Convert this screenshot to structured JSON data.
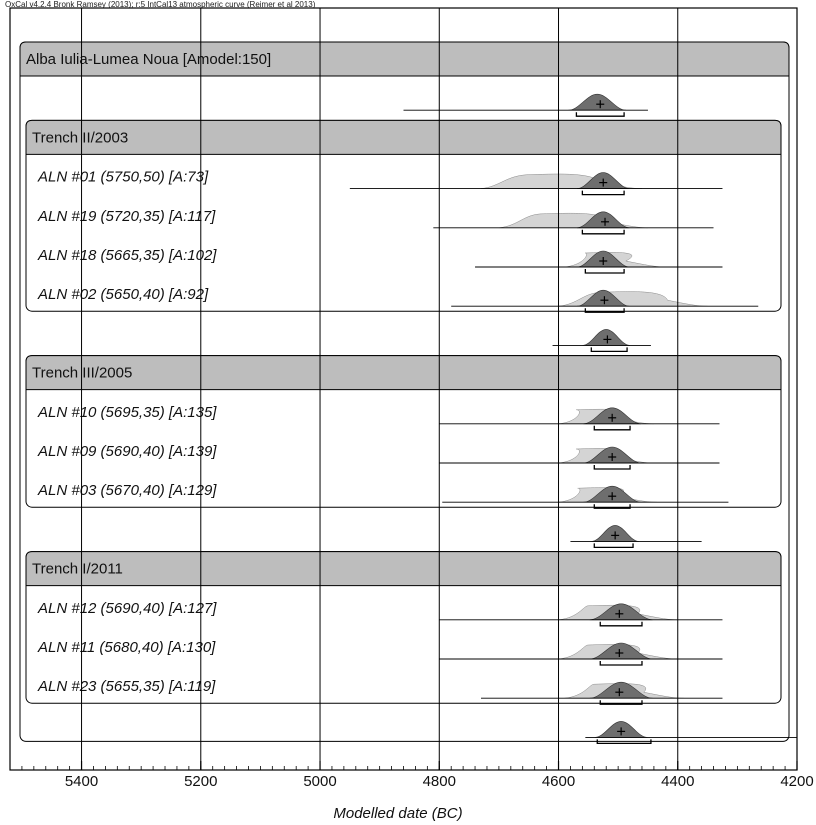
{
  "header_text": "OxCal v4.2.4 Bronk Ramsey (2013); r:5 IntCal13 atmospheric curve (Reimer et al 2013)",
  "chart_data": {
    "type": "oxcal-multiplot",
    "xlabel": "Modelled date (BC)",
    "x_axis": {
      "min": 4200,
      "max": 5520,
      "reversed": true,
      "major_ticks": [
        5400,
        5200,
        5000,
        4800,
        4600,
        4400,
        4200
      ],
      "tick_labels": [
        "5400",
        "5200",
        "5000",
        "4800",
        "4600",
        "4400",
        "4200"
      ],
      "minor_tick_step": 20
    },
    "grid": true,
    "groups": [
      {
        "label": "Alba Iulia-Lumea Noua [Amodel:150]",
        "level": 0,
        "row": 0,
        "end_row": 16
      },
      {
        "label": "Trench II/2003",
        "level": 1,
        "row": 2,
        "end_row": 6
      },
      {
        "label": "Trench III/2005",
        "level": 1,
        "row": 8,
        "end_row": 11
      },
      {
        "label": "Trench I/2011",
        "level": 1,
        "row": 13,
        "end_row": 16
      }
    ],
    "entries": [
      {
        "row": 1,
        "label": "",
        "kind": "boundary",
        "line": [
          4860,
          4450
        ],
        "peak": 4535,
        "spread": 22,
        "range": [
          4570,
          4490
        ],
        "mean": 4530
      },
      {
        "row": 3,
        "label": "ALN #01 (5750,50) [A:73]",
        "kind": "date",
        "line": [
          4950,
          4325
        ],
        "prior": [
          4730,
          4460
        ],
        "peak": 4525,
        "spread": 20,
        "range": [
          4560,
          4490
        ],
        "mean": 4525
      },
      {
        "row": 4,
        "label": "ALN #19 (5720,35) [A:117]",
        "kind": "date",
        "line": [
          4810,
          4340
        ],
        "prior": [
          4700,
          4450
        ],
        "peak": 4525,
        "spread": 20,
        "range": [
          4560,
          4490
        ],
        "mean": 4522
      },
      {
        "row": 5,
        "label": "ALN #18 (5665,35) [A:102]",
        "kind": "date",
        "line": [
          4740,
          4325
        ],
        "prior": [
          4590,
          4420
        ],
        "peak": 4525,
        "spread": 20,
        "range": [
          4555,
          4490
        ],
        "mean": 4525
      },
      {
        "row": 6,
        "label": "ALN #02 (5650,40) [A:92]",
        "kind": "date",
        "line": [
          4780,
          4265
        ],
        "prior": [
          4600,
          4350
        ],
        "peak": 4525,
        "spread": 20,
        "range": [
          4555,
          4490
        ],
        "mean": 4523
      },
      {
        "row": 7,
        "label": "",
        "kind": "boundary",
        "line": [
          4610,
          4445
        ],
        "peak": 4520,
        "spread": 18,
        "range": [
          4545,
          4485
        ],
        "mean": 4518
      },
      {
        "row": 9,
        "label": "ALN #10 (5695,35) [A:135]",
        "kind": "date",
        "line": [
          4800,
          4330
        ],
        "prior": [
          4600,
          4440
        ],
        "peak": 4510,
        "spread": 22,
        "range": [
          4540,
          4480
        ],
        "mean": 4510
      },
      {
        "row": 10,
        "label": "ALN #09 (5690,40) [A:139]",
        "kind": "date",
        "line": [
          4800,
          4330
        ],
        "prior": [
          4600,
          4440
        ],
        "peak": 4510,
        "spread": 22,
        "range": [
          4540,
          4480
        ],
        "mean": 4510
      },
      {
        "row": 11,
        "label": "ALN #03 (5670,40) [A:129]",
        "kind": "date",
        "line": [
          4795,
          4315
        ],
        "prior": [
          4600,
          4435
        ],
        "peak": 4510,
        "spread": 22,
        "range": [
          4540,
          4480
        ],
        "mean": 4510
      },
      {
        "row": 12,
        "label": "",
        "kind": "boundary",
        "line": [
          4580,
          4360
        ],
        "peak": 4505,
        "spread": 18,
        "range": [
          4540,
          4475
        ],
        "mean": 4505
      },
      {
        "row": 14,
        "label": "ALN #12 (5690,40) [A:127]",
        "kind": "date",
        "line": [
          4800,
          4325
        ],
        "prior": [
          4600,
          4400
        ],
        "peak": 4495,
        "spread": 24,
        "range": [
          4530,
          4460
        ],
        "mean": 4498
      },
      {
        "row": 15,
        "label": "ALN #11 (5680,40) [A:130]",
        "kind": "date",
        "line": [
          4800,
          4325
        ],
        "prior": [
          4600,
          4400
        ],
        "peak": 4495,
        "spread": 24,
        "range": [
          4530,
          4460
        ],
        "mean": 4498
      },
      {
        "row": 16,
        "label": "ALN #23 (5655,35) [A:119]",
        "kind": "date",
        "line": [
          4730,
          4325
        ],
        "prior": [
          4590,
          4390
        ],
        "peak": 4495,
        "spread": 24,
        "range": [
          4530,
          4460
        ],
        "mean": 4498
      },
      {
        "row": 17,
        "label": "",
        "kind": "boundary",
        "line": [
          4555,
          4200
        ],
        "peak": 4495,
        "spread": 20,
        "range": [
          4535,
          4445
        ],
        "mean": 4495
      }
    ]
  }
}
